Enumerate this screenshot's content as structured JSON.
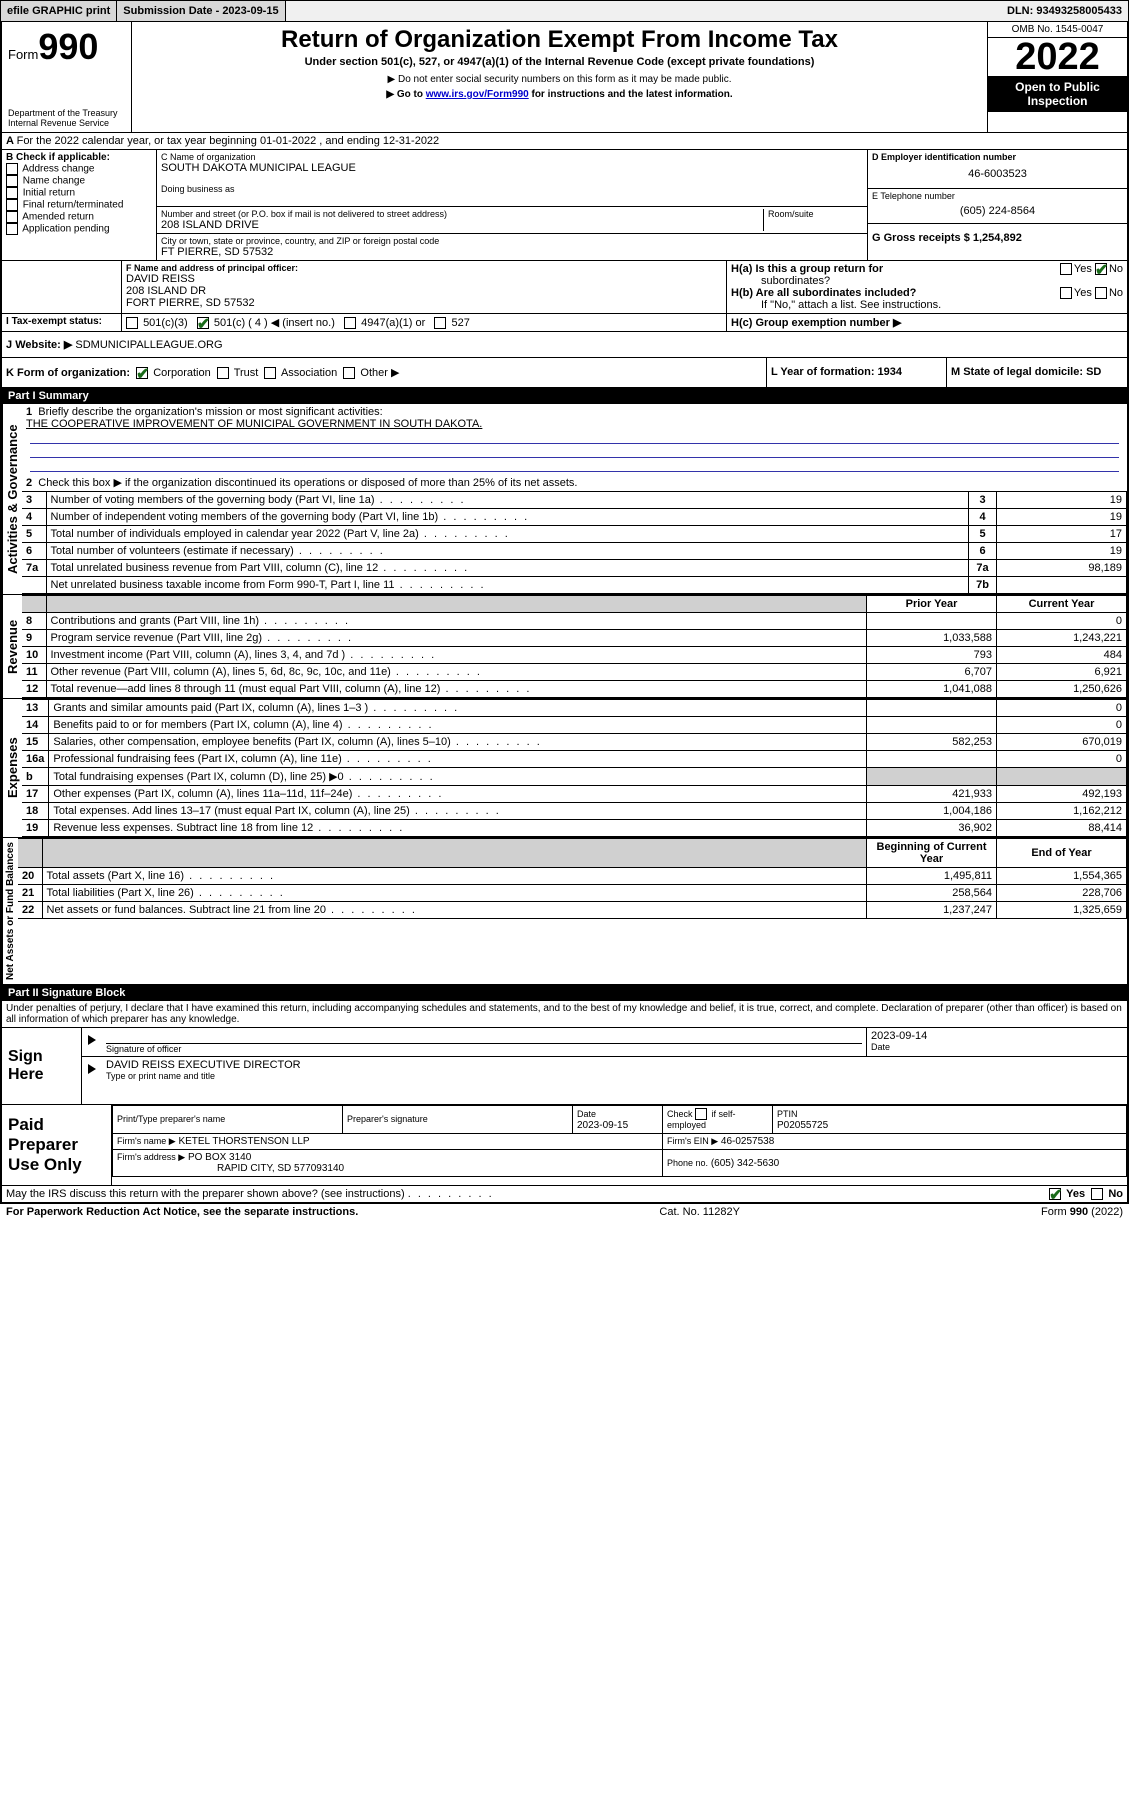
{
  "topbar": {
    "efile_btn": "efile GRAPHIC print",
    "submission_label": "Submission Date - 2023-09-15",
    "dln_label": "DLN: 93493258005433"
  },
  "header": {
    "form_word": "Form",
    "form_num": "990",
    "dept": "Department of the Treasury",
    "irs": "Internal Revenue Service",
    "title": "Return of Organization Exempt From Income Tax",
    "sub": "Under section 501(c), 527, or 4947(a)(1) of the Internal Revenue Code (except private foundations)",
    "note1": "▶ Do not enter social security numbers on this form as it may be made public.",
    "note2_pre": "▶ Go to ",
    "note2_link": "www.irs.gov/Form990",
    "note2_post": " for instructions and the latest information.",
    "omb": "OMB No. 1545-0047",
    "year": "2022",
    "open": "Open to Public Inspection"
  },
  "sectionA": {
    "line": "For the 2022 calendar year, or tax year beginning 01-01-2022   , and ending 12-31-2022"
  },
  "sectionB": {
    "label": "B Check if applicable:",
    "opts": [
      "Address change",
      "Name change",
      "Initial return",
      "Final return/terminated",
      "Amended return",
      "Application pending"
    ]
  },
  "sectionC": {
    "name_lbl": "C Name of organization",
    "name": "SOUTH DAKOTA MUNICIPAL LEAGUE",
    "dba_lbl": "Doing business as",
    "addr_lbl": "Number and street (or P.O. box if mail is not delivered to street address)",
    "room_lbl": "Room/suite",
    "addr": "208 ISLAND DRIVE",
    "city_lbl": "City or town, state or province, country, and ZIP or foreign postal code",
    "city": "FT PIERRE, SD  57532"
  },
  "sectionD": {
    "lbl": "D Employer identification number",
    "val": "46-6003523"
  },
  "sectionE": {
    "lbl": "E Telephone number",
    "val": "(605) 224-8564"
  },
  "sectionG": {
    "lbl": "G Gross receipts $ 1,254,892"
  },
  "sectionF": {
    "lbl": "F  Name and address of principal officer:",
    "l1": "DAVID REISS",
    "l2": "208 ISLAND DR",
    "l3": "FORT PIERRE, SD  57532"
  },
  "sectionH": {
    "a": "H(a)  Is this a group return for",
    "a2": "subordinates?",
    "b": "H(b)  Are all subordinates included?",
    "b2": "If \"No,\" attach a list. See instructions.",
    "c": "H(c)  Group exemption number ▶",
    "yes": "Yes",
    "no": "No"
  },
  "sectionI": {
    "lbl": "Tax-exempt status:",
    "o1": "501(c)(3)",
    "o2": "501(c) ( 4 ) ◀ (insert no.)",
    "o3": "4947(a)(1) or",
    "o4": "527"
  },
  "sectionJ": {
    "lbl": "Website: ▶",
    "val": "SDMUNICIPALLEAGUE.ORG"
  },
  "sectionK": {
    "lbl": "K Form of organization:",
    "o1": "Corporation",
    "o2": "Trust",
    "o3": "Association",
    "o4": "Other ▶"
  },
  "sectionL": {
    "lbl": "L Year of formation: 1934"
  },
  "sectionM": {
    "lbl": "M State of legal domicile: SD"
  },
  "part1": {
    "header": "Part I    Summary",
    "q1": "Briefly describe the organization's mission or most significant activities:",
    "mission": "THE COOPERATIVE IMPROVEMENT OF MUNICIPAL GOVERNMENT IN SOUTH DAKOTA.",
    "q2": "Check this box ▶        if the organization discontinued its operations or disposed of more than 25% of its net assets.",
    "rows_gov": [
      {
        "n": "3",
        "t": "Number of voting members of the governing body (Part VI, line 1a)",
        "box": "3",
        "v": "19"
      },
      {
        "n": "4",
        "t": "Number of independent voting members of the governing body (Part VI, line 1b)",
        "box": "4",
        "v": "19"
      },
      {
        "n": "5",
        "t": "Total number of individuals employed in calendar year 2022 (Part V, line 2a)",
        "box": "5",
        "v": "17"
      },
      {
        "n": "6",
        "t": "Total number of volunteers (estimate if necessary)",
        "box": "6",
        "v": "19"
      },
      {
        "n": "7a",
        "t": "Total unrelated business revenue from Part VIII, column (C), line 12",
        "box": "7a",
        "v": "98,189"
      },
      {
        "n": "",
        "t": "Net unrelated business taxable income from Form 990-T, Part I, line 11",
        "box": "7b",
        "v": ""
      }
    ],
    "col_prior": "Prior Year",
    "col_current": "Current Year",
    "rows_rev": [
      {
        "n": "8",
        "t": "Contributions and grants (Part VIII, line 1h)",
        "p": "",
        "c": "0"
      },
      {
        "n": "9",
        "t": "Program service revenue (Part VIII, line 2g)",
        "p": "1,033,588",
        "c": "1,243,221"
      },
      {
        "n": "10",
        "t": "Investment income (Part VIII, column (A), lines 3, 4, and 7d )",
        "p": "793",
        "c": "484"
      },
      {
        "n": "11",
        "t": "Other revenue (Part VIII, column (A), lines 5, 6d, 8c, 9c, 10c, and 11e)",
        "p": "6,707",
        "c": "6,921"
      },
      {
        "n": "12",
        "t": "Total revenue—add lines 8 through 11 (must equal Part VIII, column (A), line 12)",
        "p": "1,041,088",
        "c": "1,250,626"
      }
    ],
    "rows_exp": [
      {
        "n": "13",
        "t": "Grants and similar amounts paid (Part IX, column (A), lines 1–3 )",
        "p": "",
        "c": "0"
      },
      {
        "n": "14",
        "t": "Benefits paid to or for members (Part IX, column (A), line 4)",
        "p": "",
        "c": "0"
      },
      {
        "n": "15",
        "t": "Salaries, other compensation, employee benefits (Part IX, column (A), lines 5–10)",
        "p": "582,253",
        "c": "670,019"
      },
      {
        "n": "16a",
        "t": "Professional fundraising fees (Part IX, column (A), line 11e)",
        "p": "",
        "c": "0"
      },
      {
        "n": "b",
        "t": "Total fundraising expenses (Part IX, column (D), line 25) ▶0",
        "p": "shade",
        "c": "shade"
      },
      {
        "n": "17",
        "t": "Other expenses (Part IX, column (A), lines 11a–11d, 11f–24e)",
        "p": "421,933",
        "c": "492,193"
      },
      {
        "n": "18",
        "t": "Total expenses. Add lines 13–17 (must equal Part IX, column (A), line 25)",
        "p": "1,004,186",
        "c": "1,162,212"
      },
      {
        "n": "19",
        "t": "Revenue less expenses. Subtract line 18 from line 12",
        "p": "36,902",
        "c": "88,414"
      }
    ],
    "col_begin": "Beginning of Current Year",
    "col_end": "End of Year",
    "rows_net": [
      {
        "n": "20",
        "t": "Total assets (Part X, line 16)",
        "p": "1,495,811",
        "c": "1,554,365"
      },
      {
        "n": "21",
        "t": "Total liabilities (Part X, line 26)",
        "p": "258,564",
        "c": "228,706"
      },
      {
        "n": "22",
        "t": "Net assets or fund balances. Subtract line 21 from line 20",
        "p": "1,237,247",
        "c": "1,325,659"
      }
    ],
    "vlabel_gov": "Activities & Governance",
    "vlabel_rev": "Revenue",
    "vlabel_exp": "Expenses",
    "vlabel_net": "Net Assets or Fund Balances"
  },
  "part2": {
    "header": "Part II    Signature Block",
    "penalty": "Under penalties of perjury, I declare that I have examined this return, including accompanying schedules and statements, and to the best of my knowledge and belief, it is true, correct, and complete. Declaration of preparer (other than officer) is based on all information of which preparer has any knowledge.",
    "sign_here": "Sign Here",
    "sig_officer_lbl": "Signature of officer",
    "sig_date": "2023-09-14",
    "date_lbl": "Date",
    "officer_name": "DAVID REISS EXECUTIVE DIRECTOR",
    "officer_name_lbl": "Type or print name and title",
    "paid": "Paid Preparer Use Only",
    "prep_name_lbl": "Print/Type preparer's name",
    "prep_sig_lbl": "Preparer's signature",
    "prep_date_lbl": "Date",
    "prep_date": "2023-09-15",
    "check_if": "Check        if self-employed",
    "ptin_lbl": "PTIN",
    "ptin": "P02055725",
    "firm_name_lbl": "Firm's name    ▶",
    "firm_name": "KETEL THORSTENSON LLP",
    "firm_ein_lbl": "Firm's EIN ▶",
    "firm_ein": "46-0257538",
    "firm_addr_lbl": "Firm's address ▶",
    "firm_addr1": "PO BOX 3140",
    "firm_addr2": "RAPID CITY, SD  577093140",
    "phone_lbl": "Phone no.",
    "phone": "(605) 342-5630",
    "may_irs": "May the IRS discuss this return with the preparer shown above? (see instructions)"
  },
  "footer": {
    "left": "For Paperwork Reduction Act Notice, see the separate instructions.",
    "mid": "Cat. No. 11282Y",
    "right": "Form 990 (2022)"
  }
}
